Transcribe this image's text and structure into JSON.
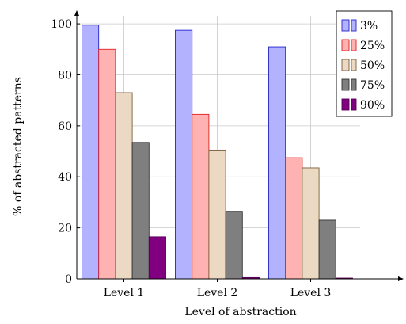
{
  "chart_data": {
    "type": "bar",
    "title": "",
    "xlabel": "Level of abstraction",
    "ylabel": "% of abstracted patterns",
    "categories": [
      "Level 1",
      "Level 2",
      "Level 3"
    ],
    "ylim": [
      0,
      105
    ],
    "yticks": [
      0,
      20,
      40,
      60,
      80,
      100
    ],
    "grid": true,
    "legend_position": "top-right",
    "series": [
      {
        "name": "3%",
        "values": [
          99.5,
          97.5,
          91.0
        ],
        "fill": "#b2b2ff",
        "stroke": "#2222cc"
      },
      {
        "name": "25%",
        "values": [
          90.0,
          64.5,
          47.5
        ],
        "fill": "#ffb2b2",
        "stroke": "#e02020"
      },
      {
        "name": "50%",
        "values": [
          73.0,
          50.5,
          43.5
        ],
        "fill": "#ebd9c4",
        "stroke": "#7a5c3a"
      },
      {
        "name": "75%",
        "values": [
          53.5,
          26.5,
          23.0
        ],
        "fill": "#7f7f7f",
        "stroke": "#333333"
      },
      {
        "name": "90%",
        "values": [
          16.5,
          0.5,
          0.3
        ],
        "fill": "#800080",
        "stroke": "#550055"
      }
    ]
  }
}
